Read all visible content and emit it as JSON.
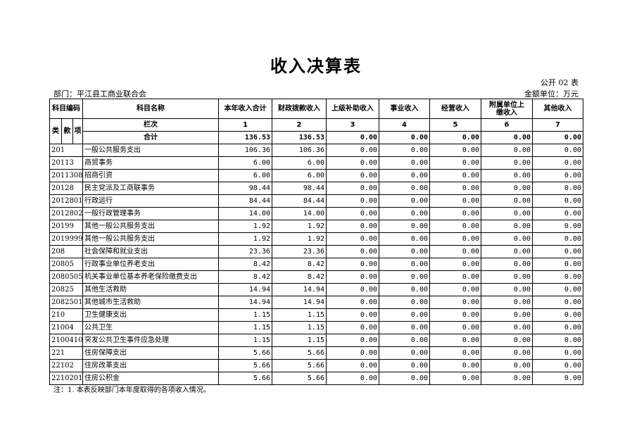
{
  "title": "收入决算表",
  "form_no": "公开 02 表",
  "department": "部门：平江县工商业联合会",
  "unit": "金额单位：万元",
  "headers": {
    "code": "科目编码",
    "name": "科目名称",
    "cols": [
      "本年收入合计",
      "财政拨款收入",
      "上级补助收入",
      "事业收入",
      "经营收入",
      "附属单位上缴收入",
      "其他收入"
    ],
    "lei": "类",
    "kuan": "款",
    "xiang": "项",
    "lanci": "栏次",
    "lanci_nums": [
      "1",
      "2",
      "3",
      "4",
      "5",
      "6",
      "7"
    ],
    "total_label": "合计"
  },
  "total": [
    "136.53",
    "136.53",
    "0.00",
    "0.00",
    "0.00",
    "0.00",
    "0.00"
  ],
  "rows": [
    {
      "code": "201",
      "name": "一般公共服务支出",
      "v": [
        "106.36",
        "106.36",
        "0.00",
        "0.00",
        "0.00",
        "0.00",
        "0.00"
      ]
    },
    {
      "code": "20113",
      "name": "商贸事务",
      "v": [
        "6.00",
        "6.00",
        "0.00",
        "0.00",
        "0.00",
        "0.00",
        "0.00"
      ]
    },
    {
      "code": "2011308",
      "name": "招商引资",
      "v": [
        "6.00",
        "6.00",
        "0.00",
        "0.00",
        "0.00",
        "0.00",
        "0.00"
      ]
    },
    {
      "code": "20128",
      "name": "民主党派及工商联事务",
      "v": [
        "98.44",
        "98.44",
        "0.00",
        "0.00",
        "0.00",
        "0.00",
        "0.00"
      ]
    },
    {
      "code": "2012801",
      "name": "行政运行",
      "v": [
        "84.44",
        "84.44",
        "0.00",
        "0.00",
        "0.00",
        "0.00",
        "0.00"
      ]
    },
    {
      "code": "2012802",
      "name": "一般行政管理事务",
      "v": [
        "14.00",
        "14.00",
        "0.00",
        "0.00",
        "0.00",
        "0.00",
        "0.00"
      ]
    },
    {
      "code": "20199",
      "name": "其他一般公共服务支出",
      "v": [
        "1.92",
        "1.92",
        "0.00",
        "0.00",
        "0.00",
        "0.00",
        "0.00"
      ]
    },
    {
      "code": "2019999",
      "name": "其他一般公共服务支出",
      "v": [
        "1.92",
        "1.92",
        "0.00",
        "0.00",
        "0.00",
        "0.00",
        "0.00"
      ]
    },
    {
      "code": "208",
      "name": "社会保障和就业支出",
      "v": [
        "23.36",
        "23.36",
        "0.00",
        "0.00",
        "0.00",
        "0.00",
        "0.00"
      ]
    },
    {
      "code": "20805",
      "name": "行政事业单位养老支出",
      "v": [
        "8.42",
        "8.42",
        "0.00",
        "0.00",
        "0.00",
        "0.00",
        "0.00"
      ]
    },
    {
      "code": "2080505",
      "name": "机关事业单位基本养老保险缴费支出",
      "v": [
        "8.42",
        "8.42",
        "0.00",
        "0.00",
        "0.00",
        "0.00",
        "0.00"
      ]
    },
    {
      "code": "20825",
      "name": "其他生活救助",
      "v": [
        "14.94",
        "14.94",
        "0.00",
        "0.00",
        "0.00",
        "0.00",
        "0.00"
      ]
    },
    {
      "code": "2082501",
      "name": "其他城市生活救助",
      "v": [
        "14.94",
        "14.94",
        "0.00",
        "0.00",
        "0.00",
        "0.00",
        "0.00"
      ]
    },
    {
      "code": "210",
      "name": "卫生健康支出",
      "v": [
        "1.15",
        "1.15",
        "0.00",
        "0.00",
        "0.00",
        "0.00",
        "0.00"
      ]
    },
    {
      "code": "21004",
      "name": "公共卫生",
      "v": [
        "1.15",
        "1.15",
        "0.00",
        "0.00",
        "0.00",
        "0.00",
        "0.00"
      ]
    },
    {
      "code": "2100410",
      "name": "突发公共卫生事件应急处理",
      "v": [
        "1.15",
        "1.15",
        "0.00",
        "0.00",
        "0.00",
        "0.00",
        "0.00"
      ]
    },
    {
      "code": "221",
      "name": "住房保障支出",
      "v": [
        "5.66",
        "5.66",
        "0.00",
        "0.00",
        "0.00",
        "0.00",
        "0.00"
      ]
    },
    {
      "code": "22102",
      "name": "住房改革支出",
      "v": [
        "5.66",
        "5.66",
        "0.00",
        "0.00",
        "0.00",
        "0.00",
        "0.00"
      ]
    },
    {
      "code": "2210201",
      "name": "住房公积金",
      "v": [
        "5.66",
        "5.66",
        "0.00",
        "0.00",
        "0.00",
        "0.00",
        "0.00"
      ]
    }
  ],
  "note": "注：1. 本表反映部门本年度取得的各项收入情况。"
}
